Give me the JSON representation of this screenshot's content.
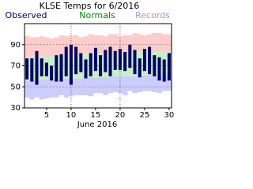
{
  "chart_data": {
    "type": "range-bar",
    "title": "KLSE Temps for 6/2016",
    "x_label": "June 2016",
    "x": [
      1,
      2,
      3,
      4,
      5,
      6,
      7,
      8,
      9,
      10,
      11,
      12,
      13,
      14,
      15,
      16,
      17,
      18,
      19,
      20,
      21,
      22,
      23,
      24,
      25,
      26,
      27,
      28,
      29,
      30
    ],
    "xlim": [
      0.5,
      30.5
    ],
    "xticks": [
      5,
      10,
      15,
      20,
      25,
      30
    ],
    "xgrid": [
      10,
      20
    ],
    "ylim": [
      30,
      110
    ],
    "yticks": [
      30,
      50,
      70,
      90
    ],
    "grid": true,
    "series": [
      {
        "name": "Observed",
        "color": "#000066",
        "highs": [
          77,
          77,
          84,
          77,
          73,
          70,
          80,
          81,
          88,
          90,
          88,
          82,
          76,
          82,
          87,
          80,
          85,
          88,
          84,
          86,
          83,
          90,
          85,
          77,
          86,
          88,
          80,
          78,
          76,
          82
        ],
        "lows": [
          57,
          55,
          52,
          60,
          60,
          56,
          55,
          55,
          60,
          52,
          62,
          64,
          58,
          60,
          65,
          60,
          64,
          60,
          66,
          66,
          65,
          68,
          62,
          59,
          65,
          62,
          60,
          56,
          55,
          56
        ]
      },
      {
        "name": "Normals",
        "color": "#008800",
        "fill": "#c8f0c8",
        "highs": [
          78,
          78,
          78,
          79,
          79,
          79,
          79,
          80,
          80,
          80,
          80,
          80,
          81,
          81,
          81,
          81,
          81,
          82,
          82,
          82,
          82,
          82,
          82,
          83,
          83,
          83,
          83,
          83,
          83,
          83
        ],
        "lows": [
          56,
          56,
          56,
          57,
          57,
          57,
          57,
          57,
          58,
          58,
          58,
          58,
          58,
          59,
          59,
          59,
          59,
          59,
          60,
          60,
          60,
          60,
          60,
          60,
          61,
          61,
          61,
          61,
          61,
          61
        ]
      },
      {
        "name": "Records",
        "color": "#b48ce0",
        "fill_high": "#ffcccc",
        "fill_low": "#ccccff",
        "highs": [
          98,
          97,
          97,
          98,
          97,
          96,
          97,
          99,
          98,
          99,
          99,
          97,
          98,
          100,
          99,
          99,
          98,
          100,
          100,
          98,
          99,
          99,
          101,
          100,
          99,
          100,
          101,
          101,
          100,
          100
        ],
        "lows": [
          40,
          38,
          40,
          38,
          39,
          40,
          40,
          42,
          40,
          41,
          42,
          42,
          42,
          41,
          44,
          44,
          42,
          44,
          45,
          44,
          42,
          46,
          44,
          45,
          46,
          46,
          45,
          44,
          46,
          46
        ]
      }
    ]
  }
}
